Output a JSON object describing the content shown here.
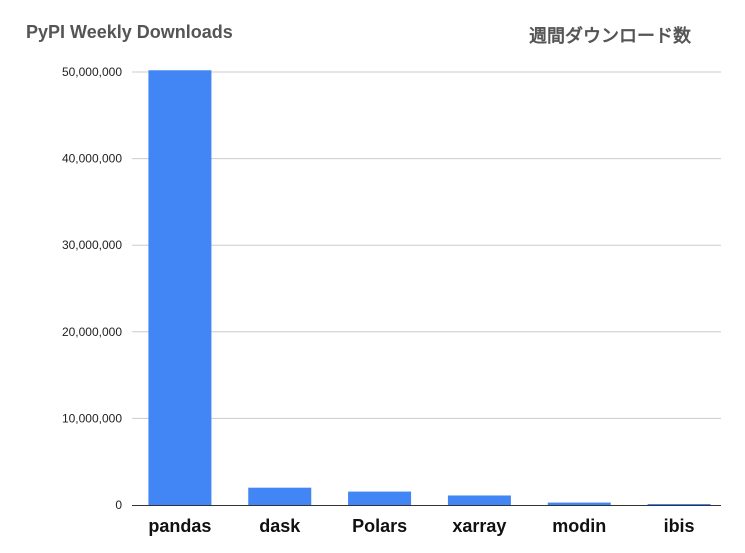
{
  "chart_data": {
    "type": "bar",
    "title": "PyPI Weekly Downloads",
    "subtitle": "週間ダウンロード数",
    "categories": [
      "pandas",
      "dask",
      "Polars",
      "xarray",
      "modin",
      "ibis"
    ],
    "values": [
      50200000,
      2000000,
      1550000,
      1100000,
      280000,
      60000
    ],
    "ylim": [
      0,
      50000000
    ],
    "yticks": [
      0,
      10000000,
      20000000,
      30000000,
      40000000,
      50000000
    ],
    "ytick_labels": [
      "0",
      "10,000,000",
      "20,000,000",
      "30,000,000",
      "40,000,000",
      "50,000,000"
    ],
    "bar_color": "#4285f4",
    "grid": true
  }
}
